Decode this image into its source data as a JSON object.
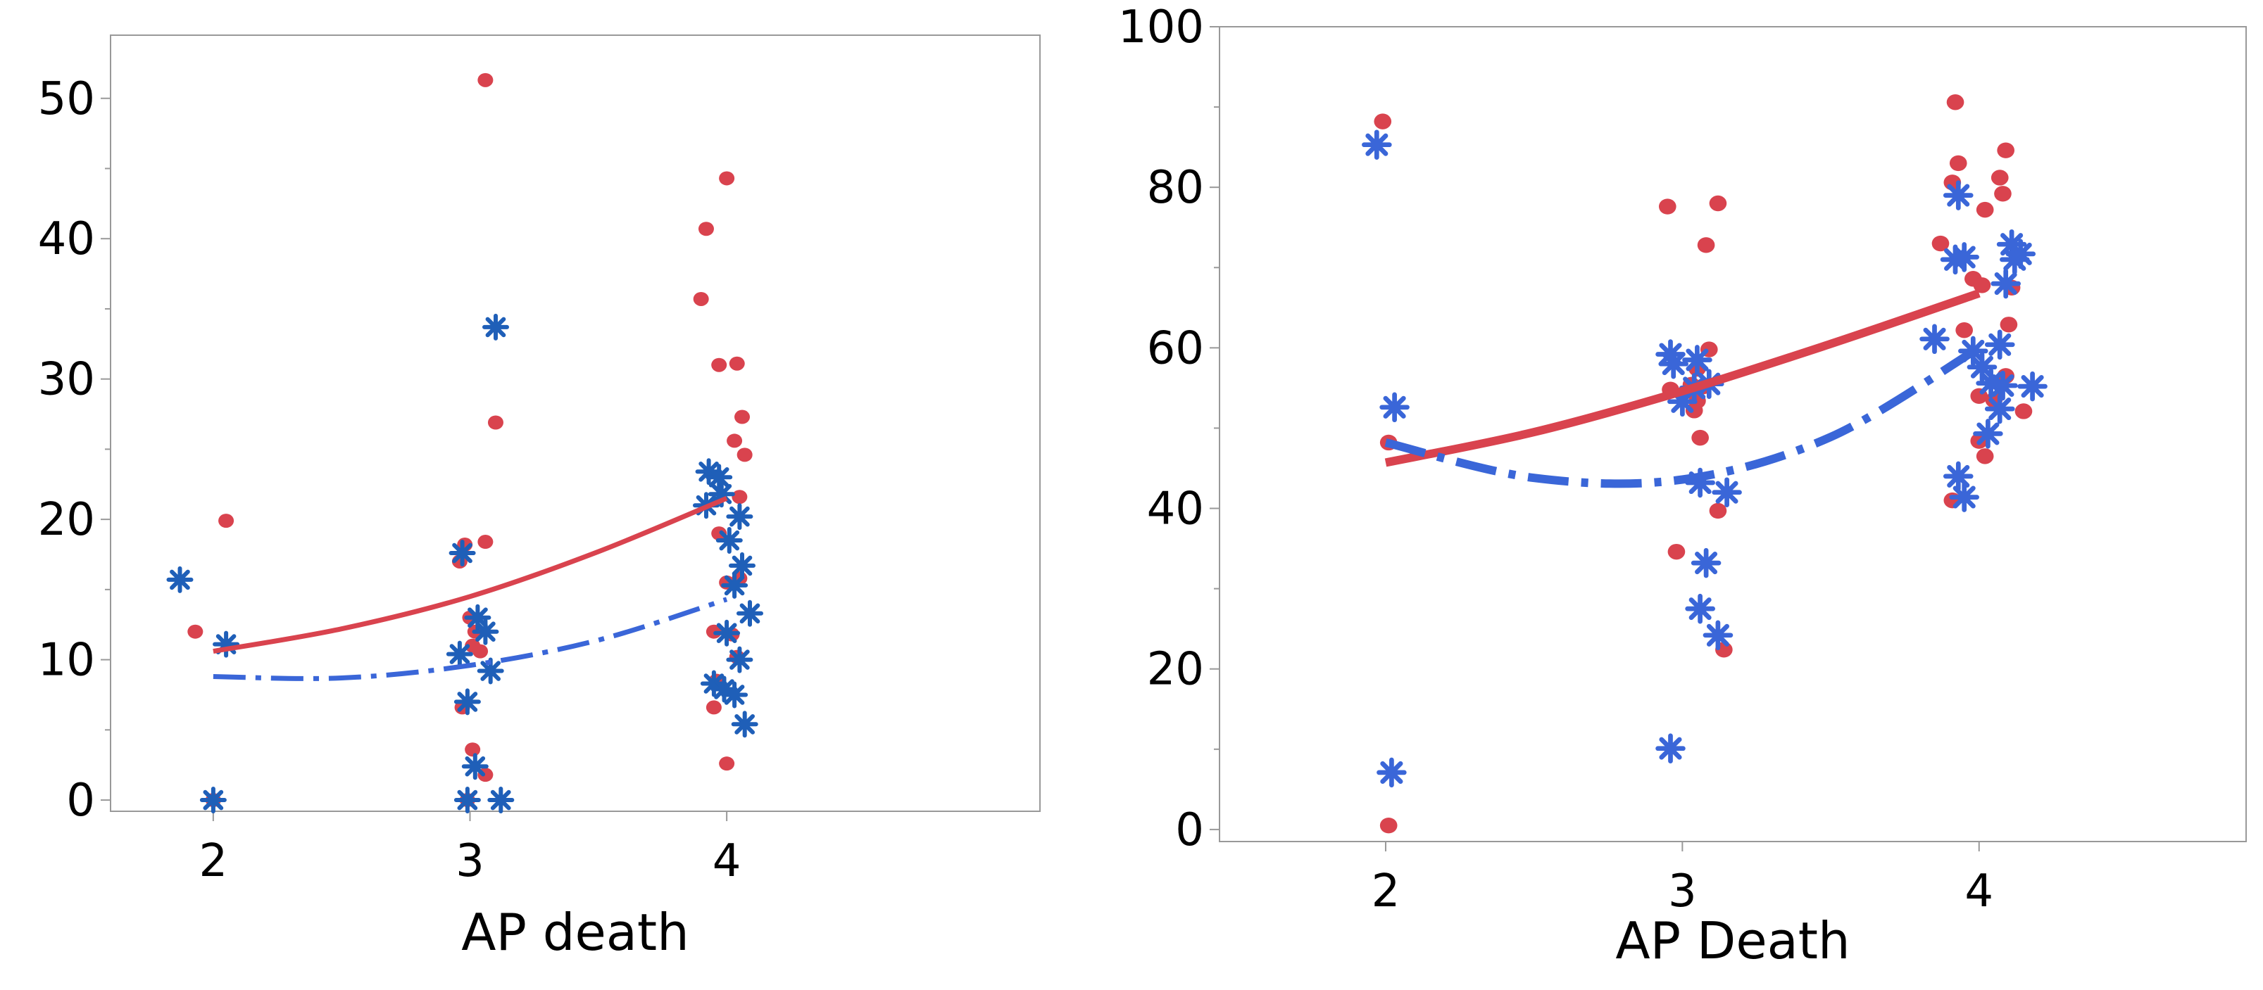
{
  "chart_data": [
    {
      "type": "scatter",
      "title": "",
      "xlabel": "AP death",
      "ylabel": "",
      "xlim": [
        1.6,
        5.22
      ],
      "ylim": [
        -0.8,
        54.5
      ],
      "x_ticks": [
        2,
        3,
        4
      ],
      "y_ticks": [
        0,
        10,
        20,
        30,
        40,
        50
      ],
      "grid": false,
      "legend": "none",
      "series": [
        {
          "name": "red-dots",
          "color": "#D9434E",
          "marker": "dot",
          "points": [
            [
              1.93,
              12.0
            ],
            [
              2.05,
              19.9
            ],
            [
              2.0,
              0.0
            ],
            [
              3.06,
              51.3
            ],
            [
              3.1,
              26.9
            ],
            [
              3.06,
              18.4
            ],
            [
              2.98,
              18.2
            ],
            [
              2.96,
              17.0
            ],
            [
              3.0,
              13.0
            ],
            [
              3.02,
              12.0
            ],
            [
              3.01,
              11.0
            ],
            [
              3.04,
              10.6
            ],
            [
              2.97,
              6.6
            ],
            [
              3.01,
              3.6
            ],
            [
              3.06,
              1.8
            ],
            [
              2.99,
              0.0
            ],
            [
              4.0,
              44.3
            ],
            [
              3.92,
              40.7
            ],
            [
              3.9,
              35.7
            ],
            [
              3.97,
              31.0
            ],
            [
              4.04,
              31.1
            ],
            [
              4.06,
              27.3
            ],
            [
              4.03,
              25.6
            ],
            [
              4.07,
              24.6
            ],
            [
              4.05,
              21.6
            ],
            [
              3.97,
              19.0
            ],
            [
              4.0,
              15.5
            ],
            [
              4.05,
              15.8
            ],
            [
              3.95,
              12.0
            ],
            [
              4.02,
              11.8
            ],
            [
              3.96,
              8.5
            ],
            [
              4.04,
              10.2
            ],
            [
              3.95,
              6.6
            ],
            [
              4.0,
              2.6
            ]
          ]
        },
        {
          "name": "blue-stars",
          "color": "#1F5FB8",
          "marker": "star",
          "points": [
            [
              1.87,
              15.7
            ],
            [
              2.05,
              11.1
            ],
            [
              2.0,
              0.0
            ],
            [
              3.1,
              33.7
            ],
            [
              2.97,
              17.6
            ],
            [
              3.03,
              13.0
            ],
            [
              3.06,
              12.0
            ],
            [
              2.96,
              10.4
            ],
            [
              3.08,
              9.2
            ],
            [
              2.99,
              7.0
            ],
            [
              3.02,
              2.4
            ],
            [
              2.99,
              0.0
            ],
            [
              3.12,
              0.0
            ],
            [
              3.93,
              23.4
            ],
            [
              3.97,
              23.0
            ],
            [
              3.92,
              21.0
            ],
            [
              3.98,
              21.8
            ],
            [
              4.05,
              20.2
            ],
            [
              4.01,
              18.5
            ],
            [
              4.06,
              16.7
            ],
            [
              4.03,
              15.3
            ],
            [
              4.09,
              13.3
            ],
            [
              4.0,
              11.9
            ],
            [
              4.05,
              10.0
            ],
            [
              3.95,
              8.3
            ],
            [
              3.99,
              7.9
            ],
            [
              4.03,
              7.5
            ],
            [
              4.07,
              5.4
            ]
          ]
        }
      ],
      "lines": [
        {
          "name": "red-fit",
          "color": "#D9434E",
          "style": "solid",
          "x": [
            2.0,
            2.5,
            3.0,
            3.5,
            4.0
          ],
          "y": [
            10.6,
            12.2,
            14.5,
            17.7,
            21.5
          ]
        },
        {
          "name": "blue-fit",
          "color": "#3A66D8",
          "style": "dashdot",
          "x": [
            2.0,
            2.5,
            3.0,
            3.5,
            4.0
          ],
          "y": [
            8.8,
            8.7,
            9.6,
            11.4,
            14.3
          ]
        }
      ]
    },
    {
      "type": "scatter",
      "title": "",
      "xlabel": "AP Death",
      "ylabel": "",
      "xlim": [
        1.44,
        4.9
      ],
      "ylim": [
        -1.5,
        100
      ],
      "x_ticks": [
        2,
        3,
        4
      ],
      "y_ticks": [
        0,
        20,
        40,
        60,
        80,
        100
      ],
      "grid": false,
      "legend": "none",
      "series": [
        {
          "name": "red-dots",
          "color": "#D9434E",
          "marker": "dot",
          "points": [
            [
              1.99,
              88.2
            ],
            [
              2.01,
              48.2
            ],
            [
              2.01,
              0.5
            ],
            [
              2.95,
              77.6
            ],
            [
              3.12,
              78.0
            ],
            [
              3.08,
              72.8
            ],
            [
              3.09,
              59.8
            ],
            [
              3.05,
              57.4
            ],
            [
              3.07,
              55.2
            ],
            [
              2.96,
              54.8
            ],
            [
              3.03,
              55.4
            ],
            [
              3.05,
              53.4
            ],
            [
              3.04,
              52.2
            ],
            [
              3.06,
              48.8
            ],
            [
              3.12,
              39.7
            ],
            [
              2.98,
              34.6
            ],
            [
              3.14,
              22.4
            ],
            [
              3.92,
              90.6
            ],
            [
              3.91,
              80.6
            ],
            [
              3.93,
              83.0
            ],
            [
              4.02,
              77.2
            ],
            [
              4.07,
              81.2
            ],
            [
              4.09,
              84.6
            ],
            [
              4.08,
              79.2
            ],
            [
              3.87,
              73.0
            ],
            [
              3.98,
              68.6
            ],
            [
              4.01,
              67.8
            ],
            [
              4.11,
              67.5
            ],
            [
              4.1,
              62.9
            ],
            [
              3.95,
              62.2
            ],
            [
              4.09,
              56.5
            ],
            [
              4.0,
              54.0
            ],
            [
              4.05,
              53.5
            ],
            [
              4.15,
              52.1
            ],
            [
              4.0,
              48.4
            ],
            [
              4.02,
              46.5
            ],
            [
              3.91,
              41.0
            ]
          ]
        },
        {
          "name": "blue-stars",
          "color": "#3A66D8",
          "marker": "star",
          "points": [
            [
              1.97,
              85.3
            ],
            [
              2.03,
              52.6
            ],
            [
              2.02,
              7.1
            ],
            [
              2.96,
              59.2
            ],
            [
              3.05,
              58.5
            ],
            [
              2.97,
              58.0
            ],
            [
              3.04,
              55.0
            ],
            [
              3.09,
              55.5
            ],
            [
              3.0,
              53.3
            ],
            [
              3.06,
              43.2
            ],
            [
              3.15,
              42.0
            ],
            [
              3.08,
              33.2
            ],
            [
              3.06,
              27.5
            ],
            [
              3.12,
              24.2
            ],
            [
              2.96,
              10.1
            ],
            [
              3.93,
              79.0
            ],
            [
              4.11,
              72.9
            ],
            [
              3.92,
              71.0
            ],
            [
              3.95,
              71.3
            ],
            [
              4.14,
              71.7
            ],
            [
              4.12,
              71.0
            ],
            [
              4.09,
              68.0
            ],
            [
              3.85,
              61.1
            ],
            [
              4.07,
              60.4
            ],
            [
              3.98,
              59.6
            ],
            [
              4.01,
              57.6
            ],
            [
              4.04,
              55.6
            ],
            [
              4.08,
              55.3
            ],
            [
              4.18,
              55.2
            ],
            [
              4.07,
              52.4
            ],
            [
              4.03,
              49.3
            ],
            [
              3.93,
              44.0
            ],
            [
              3.95,
              41.4
            ]
          ]
        }
      ],
      "lines": [
        {
          "name": "red-fit",
          "color": "#D9434E",
          "style": "solid",
          "x": [
            2.0,
            2.5,
            3.0,
            3.5,
            4.0
          ],
          "y": [
            45.7,
            49.5,
            54.6,
            60.5,
            66.8
          ]
        },
        {
          "name": "blue-fit",
          "color": "#3A66D8",
          "style": "dashdot",
          "x": [
            2.0,
            2.5,
            3.0,
            3.5,
            4.0
          ],
          "y": [
            48.2,
            43.8,
            43.6,
            48.9,
            60.0
          ]
        }
      ]
    }
  ]
}
